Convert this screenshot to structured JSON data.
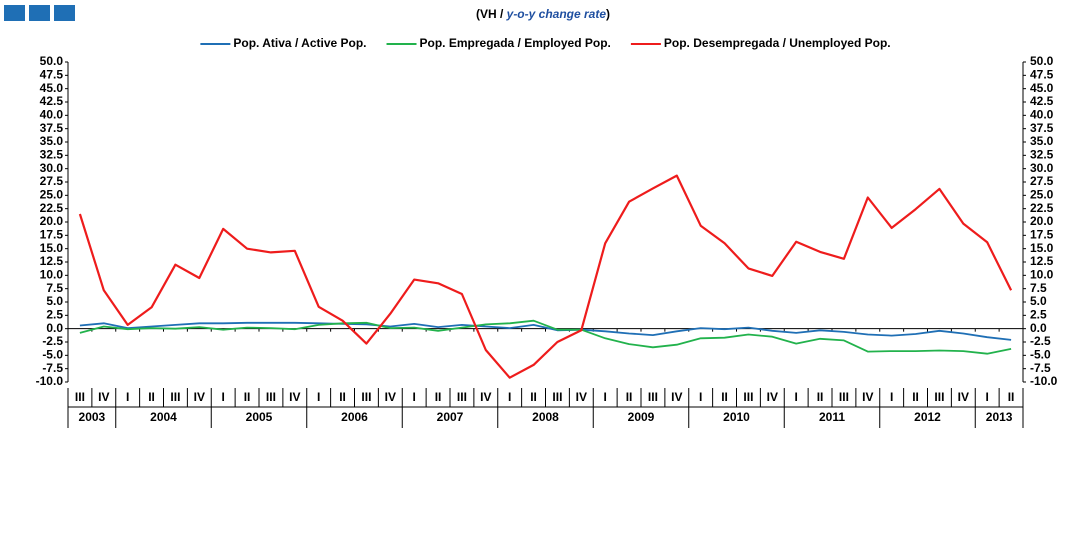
{
  "chart_data": {
    "type": "line",
    "subtitle_parts": [
      "(VH / ",
      "y-o-y change rate",
      ")"
    ],
    "categories": [
      "III",
      "IV",
      "I",
      "II",
      "III",
      "IV",
      "I",
      "II",
      "III",
      "IV",
      "I",
      "II",
      "III",
      "IV",
      "I",
      "II",
      "III",
      "IV",
      "I",
      "II",
      "III",
      "IV",
      "I",
      "II",
      "III",
      "IV",
      "I",
      "II",
      "III",
      "IV",
      "I",
      "II",
      "III",
      "IV",
      "I",
      "II",
      "III",
      "IV",
      "I",
      "II"
    ],
    "years": [
      "2003",
      "2004",
      "2005",
      "2006",
      "2007",
      "2008",
      "2009",
      "2010",
      "2011",
      "2012",
      "2013"
    ],
    "series": [
      {
        "name": "Pop. Ativa / Active Pop.",
        "color": "#1f6fb5",
        "values": [
          0.6,
          1.0,
          0.1,
          0.4,
          0.7,
          1.0,
          1.0,
          1.1,
          1.1,
          1.1,
          1.0,
          0.9,
          0.8,
          0.4,
          0.9,
          0.3,
          0.7,
          0.4,
          0.1,
          0.7,
          -0.3,
          -0.2,
          -0.5,
          -0.9,
          -1.2,
          -0.5,
          0.1,
          -0.1,
          0.2,
          -0.4,
          -0.8,
          -0.3,
          -0.6,
          -1.1,
          -1.3,
          -1.0,
          -0.4,
          -0.9,
          -1.6,
          -2.1
        ]
      },
      {
        "name": "Pop. Empregada / Employed Pop.",
        "color": "#22b24c",
        "values": [
          -0.8,
          0.4,
          -0.1,
          0.1,
          0.0,
          0.3,
          -0.2,
          0.2,
          0.1,
          -0.1,
          0.7,
          1.0,
          1.1,
          0.1,
          0.2,
          -0.4,
          0.2,
          0.8,
          1.0,
          1.5,
          -0.2,
          -0.2,
          -1.8,
          -2.9,
          -3.5,
          -3.0,
          -1.8,
          -1.7,
          -1.1,
          -1.5,
          -2.8,
          -1.9,
          -2.2,
          -4.3,
          -4.2,
          -4.2,
          -4.1,
          -4.2,
          -4.7,
          -3.8
        ]
      },
      {
        "name": "Pop. Desempregada / Unemployed Pop.",
        "color": "#ee1c1c",
        "values": [
          21.5,
          7.2,
          0.7,
          4.0,
          12.0,
          9.5,
          18.7,
          15.0,
          14.3,
          14.6,
          4.1,
          1.5,
          -2.8,
          2.8,
          9.2,
          8.5,
          6.5,
          -4.0,
          -9.2,
          -6.8,
          -2.5,
          -0.3,
          16.0,
          23.8,
          26.3,
          28.7,
          19.3,
          16.0,
          11.3,
          9.9,
          16.3,
          14.4,
          13.1,
          24.6,
          18.9,
          22.4,
          26.2,
          19.7,
          16.2,
          7.2
        ]
      }
    ],
    "ylim": [
      -10,
      50
    ],
    "yticks": [
      {
        "value": -10,
        "label": "-10.0"
      },
      -7.5,
      {
        "value": -5,
        "label": "-5.0"
      },
      -2.5,
      {
        "value": 0,
        "label": "0.0"
      },
      2.5,
      {
        "value": 5,
        "label": "5.0"
      },
      7.5,
      {
        "value": 10,
        "label": "10.0"
      },
      12.5,
      {
        "value": 15,
        "label": "15.0"
      },
      17.5,
      {
        "value": 20,
        "label": "20.0"
      },
      22.5,
      {
        "value": 25,
        "label": "25.0"
      },
      27.5,
      {
        "value": 30,
        "label": "30.0"
      },
      32.5,
      {
        "value": 35,
        "label": "35.0"
      },
      37.5,
      {
        "value": 40,
        "label": "40.0"
      },
      42.5,
      {
        "value": 45,
        "label": "45.0"
      },
      47.5,
      {
        "value": 50,
        "label": "50.0"
      }
    ],
    "y2lim": [
      -10,
      50
    ],
    "y2ticks": [
      {
        "value": -10,
        "label": "-10.0"
      },
      -7.5,
      {
        "value": -5,
        "label": "-5.0"
      },
      -2.5,
      {
        "value": 0,
        "label": "0.0"
      },
      2.5,
      {
        "value": 5,
        "label": "5.0"
      },
      7.5,
      {
        "value": 10,
        "label": "10.0"
      },
      12.5,
      {
        "value": 15,
        "label": "15.0"
      },
      17.5,
      {
        "value": 20,
        "label": "20.0"
      },
      22.5,
      {
        "value": 25,
        "label": "25.0"
      },
      27.5,
      {
        "value": 30,
        "label": "30.0"
      },
      32.5,
      {
        "value": 35,
        "label": "35.0"
      },
      37.5,
      {
        "value": 40,
        "label": "40.0"
      },
      42.5,
      {
        "value": 45,
        "label": "45.0"
      },
      47.5,
      {
        "value": 50,
        "label": "50.0"
      }
    ],
    "legend": "top",
    "grid": false
  }
}
